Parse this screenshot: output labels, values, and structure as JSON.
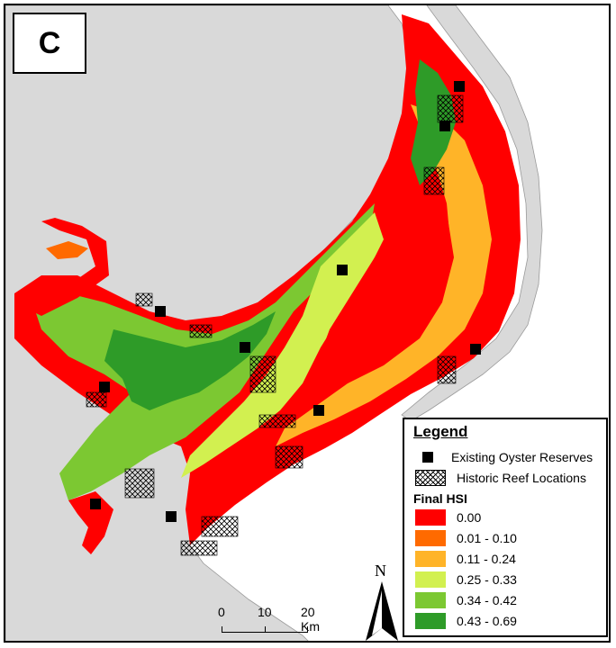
{
  "panel_label": "C",
  "legend": {
    "title": "Legend",
    "reserves_label": "Existing Oyster Reserves",
    "reefs_label": "Historic Reef Locations",
    "hsi_title": "Final HSI",
    "classes": [
      {
        "label": "0.00",
        "color": "#ff0000"
      },
      {
        "label": "0.01 - 0.10",
        "color": "#ff6a00"
      },
      {
        "label": "0.11 - 0.24",
        "color": "#ffb428"
      },
      {
        "label": "0.25 - 0.33",
        "color": "#d2f050"
      },
      {
        "label": "0.34 - 0.42",
        "color": "#7cc832"
      },
      {
        "label": "0.43 - 0.69",
        "color": "#2e9b28"
      }
    ]
  },
  "scale_bar": {
    "labels": [
      "0",
      "10",
      "20 Km"
    ]
  },
  "north_arrow": {
    "label": "N"
  },
  "colors": {
    "land": "#d9d9d9",
    "water_outside": "#ffffff",
    "marker": "#000000"
  }
}
